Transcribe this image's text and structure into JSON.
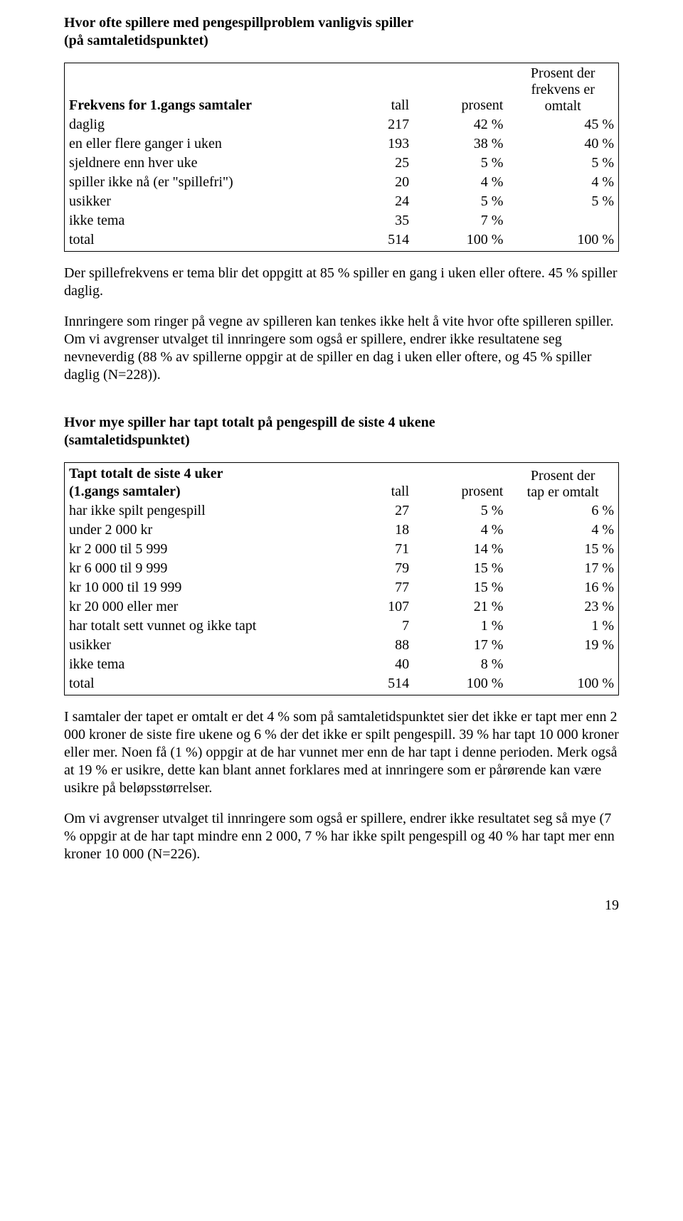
{
  "section1": {
    "heading_line1": "Hvor ofte spillere med pengespillproblem vanligvis spiller",
    "heading_line2": "(på samtaletidspunktet)",
    "table": {
      "header_label": "Frekvens for 1.gangs samtaler",
      "header_col1": "tall",
      "header_col2": "prosent",
      "header_col3_l1": "Prosent der",
      "header_col3_l2": "frekvens er",
      "header_col3_l3": "omtalt",
      "rows": [
        {
          "label": "daglig",
          "n": "217",
          "p": "42 %",
          "p2": "45 %"
        },
        {
          "label": "en eller flere ganger i uken",
          "n": "193",
          "p": "38 %",
          "p2": "40 %"
        },
        {
          "label": "sjeldnere enn hver uke",
          "n": "25",
          "p": "5 %",
          "p2": "5 %"
        },
        {
          "label": "spiller ikke nå (er \"spillefri\")",
          "n": "20",
          "p": "4 %",
          "p2": "4 %"
        },
        {
          "label": "usikker",
          "n": "24",
          "p": "5 %",
          "p2": "5 %"
        },
        {
          "label": "ikke tema",
          "n": "35",
          "p": "7 %",
          "p2": ""
        },
        {
          "label": "total",
          "n": "514",
          "p": "100 %",
          "p2": "100 %"
        }
      ]
    },
    "para1": "Der spillefrekvens er tema blir det oppgitt at 85 % spiller en gang i uken eller oftere. 45 % spiller daglig.",
    "para2": "Innringere som ringer på vegne av spilleren kan tenkes ikke helt å vite hvor ofte spilleren spiller. Om vi avgrenser utvalget til innringere som også er spillere, endrer ikke resultatene seg nevneverdig (88 % av spillerne oppgir at de spiller en dag i uken eller oftere, og 45 % spiller daglig (N=228))."
  },
  "section2": {
    "heading_line1": "Hvor mye spiller har tapt totalt på pengespill de siste 4 ukene",
    "heading_line2": "(samtaletidspunktet)",
    "table": {
      "header_label_l1": "Tapt totalt de siste 4 uker",
      "header_label_l2": "(1.gangs samtaler)",
      "header_col1": "tall",
      "header_col2": "prosent",
      "header_col3_l1": "Prosent der",
      "header_col3_l2": "tap er omtalt",
      "rows": [
        {
          "label": "har ikke spilt pengespill",
          "n": "27",
          "p": "5 %",
          "p2": "6 %"
        },
        {
          "label": "under 2 000 kr",
          "n": "18",
          "p": "4 %",
          "p2": "4 %"
        },
        {
          "label": "kr 2 000 til 5 999",
          "n": "71",
          "p": "14 %",
          "p2": "15 %"
        },
        {
          "label": "kr 6 000 til 9 999",
          "n": "79",
          "p": "15 %",
          "p2": "17 %"
        },
        {
          "label": "kr 10 000 til 19 999",
          "n": "77",
          "p": "15 %",
          "p2": "16 %"
        },
        {
          "label": "kr 20 000 eller mer",
          "n": "107",
          "p": "21 %",
          "p2": "23 %"
        },
        {
          "label": "har totalt sett vunnet og ikke tapt",
          "n": "7",
          "p": "1 %",
          "p2": "1 %"
        },
        {
          "label": "usikker",
          "n": "88",
          "p": "17 %",
          "p2": "19 %"
        },
        {
          "label": "ikke tema",
          "n": "40",
          "p": "8 %",
          "p2": ""
        },
        {
          "label": "total",
          "n": "514",
          "p": "100 %",
          "p2": "100 %"
        }
      ]
    },
    "para1": "I samtaler der tapet er omtalt er det 4 % som på samtaletidspunktet sier det ikke er tapt mer enn 2 000 kroner de siste fire ukene og 6 % der det ikke er spilt pengespill. 39 % har tapt 10 000 kroner eller mer. Noen få (1 %) oppgir at de har vunnet mer enn de har tapt i denne perioden. Merk også at 19 % er usikre, dette kan blant annet forklares med at innringere som er pårørende kan være usikre på beløpsstørrelser.",
    "para2": "Om vi avgrenser utvalget til innringere som også er spillere, endrer ikke resultatet seg så mye (7 % oppgir at de har tapt mindre enn 2 000, 7 % har ikke spilt pengespill og 40 % har tapt mer enn kroner 10 000 (N=226)."
  },
  "page_number": "19"
}
